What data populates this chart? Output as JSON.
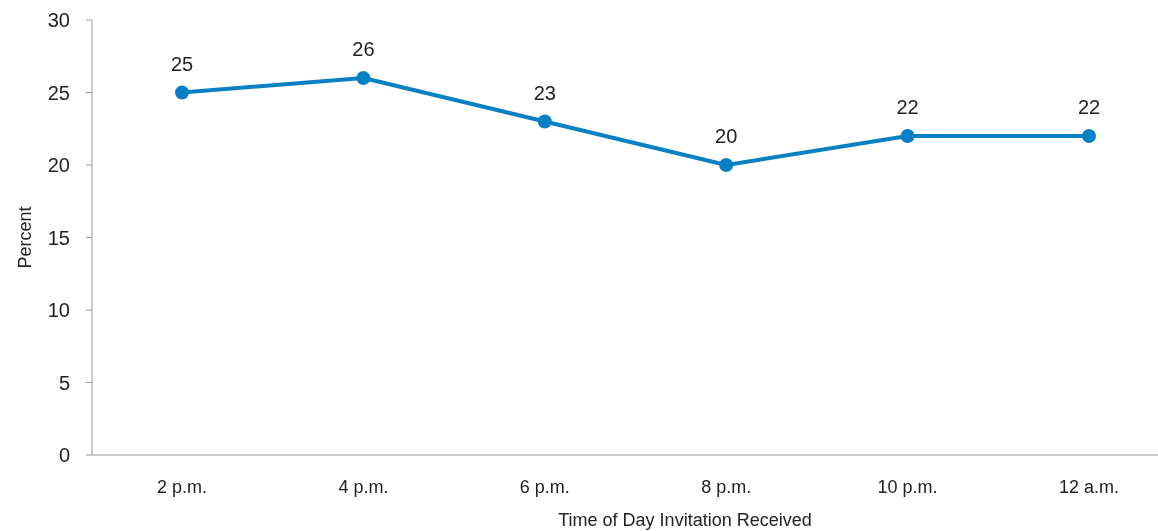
{
  "chart_data": {
    "type": "line",
    "xlabel": "Time of Day Invitation Received",
    "ylabel": "Percent",
    "categories": [
      "2 p.m.",
      "4 p.m.",
      "6 p.m.",
      "8 p.m.",
      "10 p.m.",
      "12 a.m."
    ],
    "series": [
      {
        "color": "#0a80c4",
        "values": [
          25,
          26,
          23,
          20,
          22,
          22
        ]
      }
    ],
    "ylim": [
      0,
      30
    ],
    "yticks": [
      0,
      5,
      10,
      15,
      20,
      25,
      30
    ],
    "grid": false,
    "marker": "circle",
    "line_style": "solid",
    "data_labels": true
  }
}
